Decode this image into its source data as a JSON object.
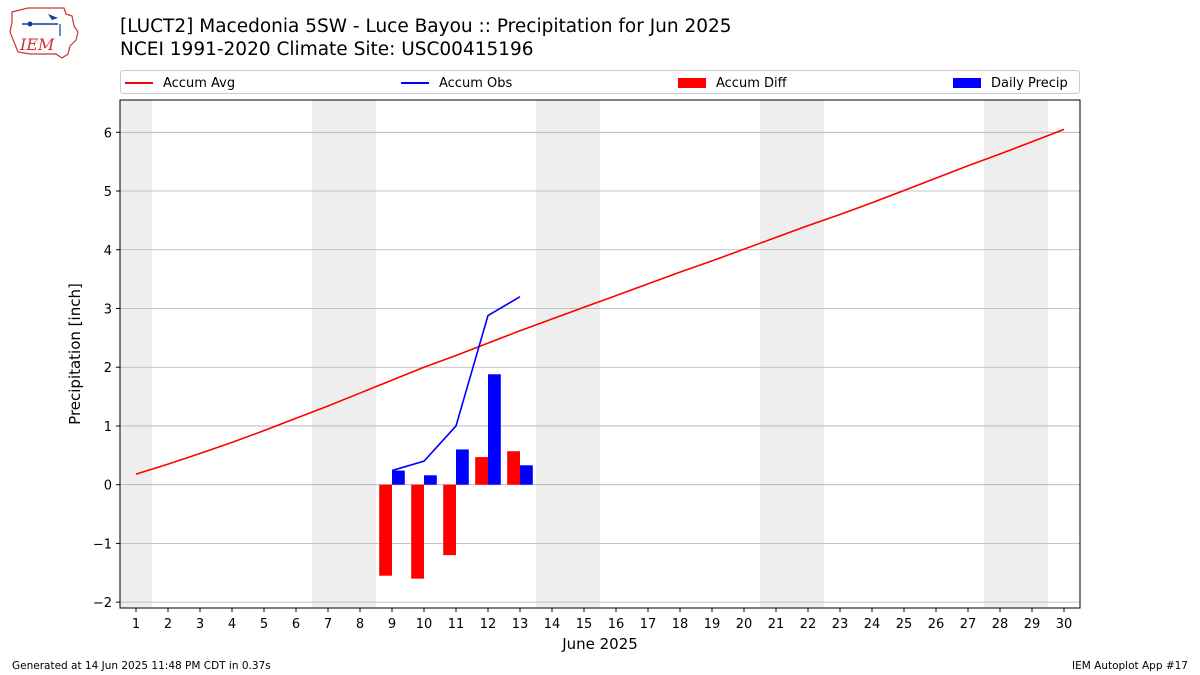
{
  "header": {
    "title_line1": "[LUCT2] Macedonia 5SW - Luce Bayou :: Precipitation for Jun 2025",
    "title_line2": "NCEI 1991-2020 Climate Site: USC00415196",
    "logo_text": "IEM"
  },
  "legend": {
    "accum_avg": "Accum Avg",
    "accum_obs": "Accum Obs",
    "accum_diff": "Accum Diff",
    "daily_precip": "Daily Precip"
  },
  "footer": {
    "generated": "Generated at 14 Jun 2025 11:48 PM CDT in 0.37s",
    "app": "IEM Autoplot App #17"
  },
  "colors": {
    "accum_avg": "#ff0000",
    "accum_obs": "#0000ff",
    "accum_diff": "#ff0000",
    "daily_precip": "#0000ff",
    "weekend_band": "#eeeeee",
    "grid": "#b0b0b0"
  },
  "chart_data": {
    "type": "bar",
    "xlabel": "June 2025",
    "ylabel": "Precipitation [inch]",
    "xlim": [
      0.5,
      30.5
    ],
    "ylim": [
      -2.1,
      6.55
    ],
    "x_ticks": [
      1,
      2,
      3,
      4,
      5,
      6,
      7,
      8,
      9,
      10,
      11,
      12,
      13,
      14,
      15,
      16,
      17,
      18,
      19,
      20,
      21,
      22,
      23,
      24,
      25,
      26,
      27,
      28,
      29,
      30
    ],
    "y_ticks": [
      -2,
      -1,
      0,
      1,
      2,
      3,
      4,
      5,
      6
    ],
    "y_tick_labels": [
      "−2",
      "−1",
      "0",
      "1",
      "2",
      "3",
      "4",
      "5",
      "6"
    ],
    "grid": "horizontal",
    "legend_position": "top",
    "weekend_bands": [
      [
        0.5,
        1.5
      ],
      [
        6.5,
        8.5
      ],
      [
        13.5,
        15.5
      ],
      [
        20.5,
        22.5
      ],
      [
        27.5,
        29.5
      ]
    ],
    "series": [
      {
        "name": "Accum Avg",
        "kind": "line",
        "x": [
          1,
          2,
          3,
          4,
          5,
          6,
          7,
          8,
          9,
          10,
          11,
          12,
          13,
          14,
          15,
          16,
          17,
          18,
          19,
          20,
          21,
          22,
          23,
          24,
          25,
          26,
          27,
          28,
          29,
          30
        ],
        "values": [
          0.18,
          0.35,
          0.53,
          0.72,
          0.92,
          1.13,
          1.34,
          1.56,
          1.78,
          2.0,
          2.2,
          2.41,
          2.62,
          2.82,
          3.02,
          3.22,
          3.42,
          3.62,
          3.81,
          4.01,
          4.21,
          4.41,
          4.6,
          4.8,
          5.01,
          5.22,
          5.43,
          5.63,
          5.84,
          6.05
        ]
      },
      {
        "name": "Accum Obs",
        "kind": "line",
        "x": [
          9,
          10,
          11,
          12,
          13
        ],
        "values": [
          0.24,
          0.4,
          1.0,
          2.88,
          3.2
        ]
      },
      {
        "name": "Accum Diff",
        "kind": "bar",
        "x": [
          9,
          10,
          11,
          12,
          13
        ],
        "values": [
          -1.55,
          -1.6,
          -1.2,
          0.47,
          0.57
        ]
      },
      {
        "name": "Daily Precip",
        "kind": "bar",
        "x": [
          9,
          10,
          11,
          12,
          13
        ],
        "values": [
          0.24,
          0.16,
          0.6,
          1.88,
          0.33
        ]
      }
    ]
  }
}
